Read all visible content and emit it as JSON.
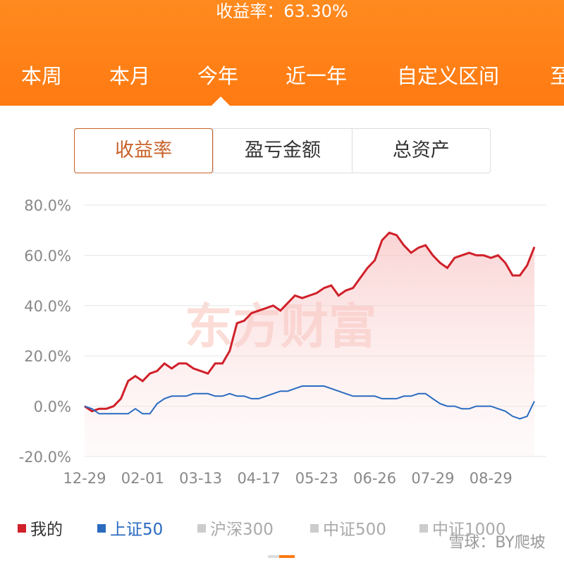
{
  "header": {
    "return_text": "收益率：63.30%",
    "tabs": [
      "本周",
      "本月",
      "今年",
      "近一年",
      "自定义区间",
      "至"
    ]
  },
  "segments": [
    "收益率",
    "盈亏金额",
    "总资产"
  ],
  "chart_data": {
    "type": "line",
    "categories": [
      "12-29",
      null,
      null,
      null,
      null,
      null,
      null,
      null,
      "02-01",
      null,
      null,
      null,
      null,
      null,
      null,
      null,
      "03-13",
      null,
      null,
      null,
      null,
      null,
      null,
      null,
      "04-17",
      null,
      null,
      null,
      null,
      null,
      null,
      null,
      "05-23",
      null,
      null,
      null,
      null,
      null,
      null,
      null,
      "06-26",
      null,
      null,
      null,
      null,
      null,
      null,
      null,
      "07-29",
      null,
      null,
      null,
      null,
      null,
      null,
      null,
      "08-29",
      null,
      null,
      null,
      null,
      null,
      null
    ],
    "series": [
      {
        "name": "我的",
        "color": "#d0202a",
        "values": [
          0,
          -2,
          -1,
          -1,
          0,
          3,
          10,
          12,
          10,
          13,
          14,
          17,
          15,
          17,
          17,
          15,
          14,
          13,
          17,
          17,
          22,
          33,
          34,
          37,
          38,
          39,
          40,
          38,
          41,
          44,
          43,
          44,
          45,
          47,
          48,
          44,
          46,
          47,
          51,
          55,
          58,
          66,
          69,
          68,
          64,
          61,
          63,
          64,
          60,
          57,
          55,
          59,
          60,
          61,
          60,
          60,
          59,
          60,
          57,
          52,
          52,
          56,
          63.3
        ]
      },
      {
        "name": "上证50",
        "color": "#2a6bc0",
        "values": [
          0,
          -1,
          -3,
          -3,
          -3,
          -3,
          -3,
          -1,
          -3,
          -3,
          1,
          3,
          4,
          4,
          4,
          5,
          5,
          5,
          4,
          4,
          5,
          4,
          4,
          3,
          3,
          4,
          5,
          6,
          6,
          7,
          8,
          8,
          8,
          8,
          7,
          6,
          5,
          4,
          4,
          4,
          4,
          3,
          3,
          3,
          4,
          4,
          5,
          5,
          3,
          1,
          0,
          0,
          -1,
          -1,
          0,
          0,
          0,
          -1,
          -2,
          -4,
          -5,
          -4,
          2
        ]
      }
    ],
    "inactive_legend": [
      "沪深300",
      "中证500",
      "中证1000"
    ],
    "ylim": [
      -20,
      80
    ],
    "yticks": [
      {
        "value": -20,
        "label": "-20.0%"
      },
      {
        "value": 0,
        "label": "0.0%"
      },
      {
        "value": 20,
        "label": "20.0%"
      },
      {
        "value": 40,
        "label": "40.0%"
      },
      {
        "value": 60,
        "label": "60.0%"
      },
      {
        "value": 80,
        "label": "80.0%"
      }
    ],
    "grid": true
  },
  "watermarks": [
    "东方财富",
    "雪球：BY爬坡"
  ]
}
